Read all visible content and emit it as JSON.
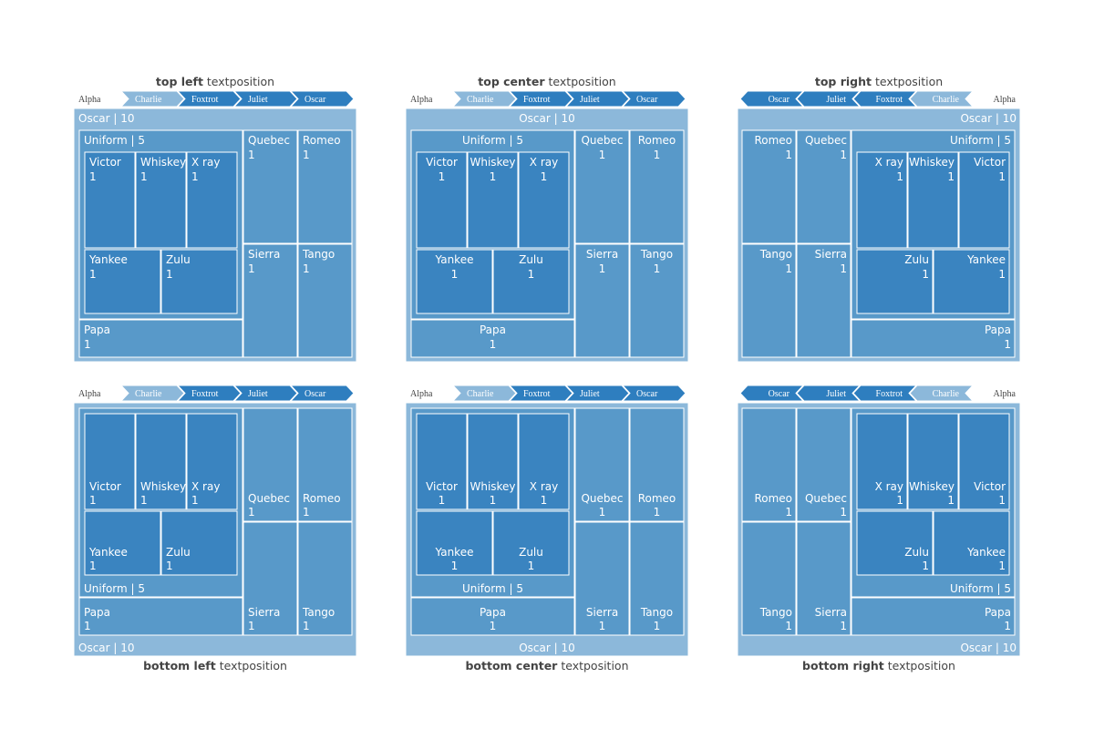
{
  "chart_data": {
    "type": "treemap",
    "root_label": "Alpha",
    "colors": {
      "level1": "#8cb8da",
      "level2": "#5899c9",
      "level3": "#3a84c0",
      "pathway_bg": "#2e7ebf",
      "title": "#444444"
    },
    "panels": [
      {
        "title_bold": "top left",
        "title_rest": " textposition",
        "textposition": "top left"
      },
      {
        "title_bold": "top center",
        "title_rest": " textposition",
        "textposition": "top center"
      },
      {
        "title_bold": "top right",
        "title_rest": " textposition",
        "textposition": "top right"
      },
      {
        "title_bold": "bottom left",
        "title_rest": " textposition",
        "textposition": "bottom left"
      },
      {
        "title_bold": "bottom center",
        "title_rest": " textposition",
        "textposition": "bottom center"
      },
      {
        "title_bold": "bottom right",
        "title_rest": " textposition",
        "textposition": "bottom right"
      }
    ],
    "pathbar": [
      "Charlie",
      "Foxtrot",
      "Juliet",
      "Oscar"
    ],
    "nodes": [
      {
        "label": "Oscar",
        "parent": "",
        "value": 10
      },
      {
        "label": "Uniform",
        "parent": "Oscar",
        "value": 5
      },
      {
        "label": "Quebec",
        "parent": "Oscar",
        "value": 1
      },
      {
        "label": "Romeo",
        "parent": "Oscar",
        "value": 1
      },
      {
        "label": "Sierra",
        "parent": "Oscar",
        "value": 1
      },
      {
        "label": "Tango",
        "parent": "Oscar",
        "value": 1
      },
      {
        "label": "Papa",
        "parent": "Oscar",
        "value": 1
      },
      {
        "label": "Victor",
        "parent": "Uniform",
        "value": 1
      },
      {
        "label": "Whiskey",
        "parent": "Uniform",
        "value": 1
      },
      {
        "label": "X ray",
        "parent": "Uniform",
        "value": 1
      },
      {
        "label": "Yankee",
        "parent": "Uniform",
        "value": 1
      },
      {
        "label": "Zulu",
        "parent": "Uniform",
        "value": 1
      }
    ]
  }
}
